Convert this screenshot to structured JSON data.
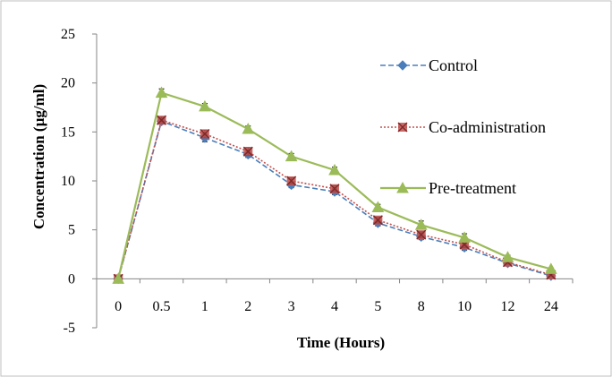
{
  "chart_data": {
    "type": "line",
    "title": "",
    "xlabel": "Time (Hours)",
    "ylabel": "Concentration (µg/ml)",
    "categories": [
      "0",
      "0.5",
      "1",
      "2",
      "3",
      "4",
      "5",
      "8",
      "10",
      "12",
      "24"
    ],
    "ylim": [
      -5,
      25
    ],
    "yticks": [
      -5,
      0,
      5,
      10,
      15,
      20,
      25
    ],
    "grid": false,
    "legend_position": "right",
    "series": [
      {
        "name": "Control",
        "color": "#4A7EBB",
        "line_style": "dashed",
        "marker": "diamond",
        "values": [
          0,
          16.1,
          14.4,
          12.7,
          9.6,
          8.9,
          5.7,
          4.3,
          3.2,
          1.6,
          0.3
        ],
        "errors": [
          0.2,
          0.3,
          0.4,
          0.3,
          0.3,
          0.3,
          0.3,
          0.3,
          0.3,
          0.2,
          0.1
        ]
      },
      {
        "name": "Co-administration",
        "color": "#C0504D",
        "line_style": "dotted",
        "marker": "x-square",
        "values": [
          0,
          16.2,
          14.8,
          13.0,
          10.0,
          9.2,
          6.0,
          4.5,
          3.5,
          1.7,
          0.4
        ],
        "errors": [
          0.2,
          0.3,
          0.4,
          0.4,
          0.3,
          0.3,
          0.3,
          0.3,
          0.3,
          0.2,
          0.1
        ]
      },
      {
        "name": "Pre-treatment",
        "color": "#9BBB59",
        "line_style": "solid",
        "marker": "triangle",
        "values": [
          0,
          19.0,
          17.6,
          15.3,
          12.5,
          11.1,
          7.3,
          5.5,
          4.2,
          2.2,
          1.0
        ],
        "errors": [
          0.2,
          0.4,
          0.3,
          0.3,
          0.3,
          0.3,
          0.3,
          0.4,
          0.4,
          0.2,
          0.1
        ]
      }
    ]
  }
}
